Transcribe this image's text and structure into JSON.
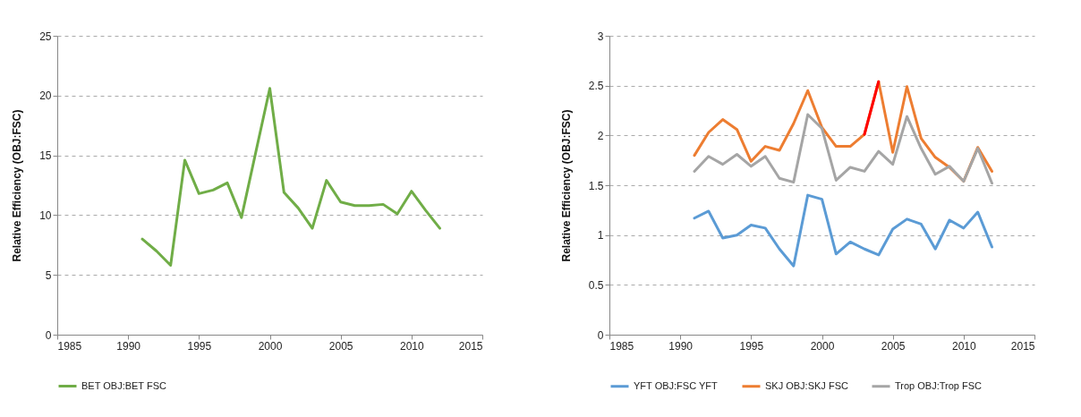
{
  "chart_data": [
    {
      "type": "line",
      "ylabel": "Relative Efficiency (OBJ:FSC)",
      "x": [
        1991,
        1992,
        1993,
        1994,
        1995,
        1996,
        1997,
        1998,
        1999,
        2000,
        2001,
        2002,
        2003,
        2004,
        2005,
        2006,
        2007,
        2008,
        2009,
        2010,
        2011,
        2012
      ],
      "series": [
        {
          "name": "BET OBJ:BET FSC",
          "color": "#70ad47",
          "values": [
            8.0,
            7.0,
            5.8,
            14.6,
            11.8,
            12.1,
            12.7,
            9.8,
            15.2,
            20.6,
            11.9,
            10.6,
            8.9,
            12.9,
            11.1,
            10.8,
            10.8,
            10.9,
            10.1,
            12.0,
            10.4,
            8.9
          ]
        }
      ],
      "xlim": [
        1985,
        2015
      ],
      "xticks": [
        1985,
        1990,
        1995,
        2000,
        2005,
        2010,
        2015
      ],
      "ylim": [
        0,
        25
      ],
      "yticks": [
        0,
        5,
        10,
        15,
        20,
        25
      ],
      "grid": "y",
      "legend": "bottom",
      "line_style": "solid"
    },
    {
      "type": "line",
      "ylabel": "Relative Efficiency (OBJ:FSC)",
      "x": [
        1991,
        1992,
        1993,
        1994,
        1995,
        1996,
        1997,
        1998,
        1999,
        2000,
        2001,
        2002,
        2003,
        2004,
        2005,
        2006,
        2007,
        2008,
        2009,
        2010,
        2011,
        2012
      ],
      "series": [
        {
          "name": "YFT OBJ:FSC YFT",
          "color": "#5b9bd5",
          "values": [
            1.17,
            1.24,
            0.97,
            1.0,
            1.1,
            1.07,
            0.86,
            0.69,
            1.4,
            1.36,
            0.81,
            0.93,
            0.86,
            0.8,
            1.06,
            1.16,
            1.11,
            0.86,
            1.15,
            1.07,
            1.23,
            0.88
          ]
        },
        {
          "name": "SKJ OBJ:SKJ FSC",
          "color": "#ed7d31",
          "values": [
            1.8,
            2.03,
            2.16,
            2.06,
            1.74,
            1.89,
            1.85,
            2.12,
            2.45,
            2.08,
            1.89,
            1.89,
            2.01,
            2.54,
            1.83,
            2.49,
            1.97,
            1.78,
            1.68,
            1.54,
            1.88,
            1.64
          ]
        },
        {
          "name": "Trop OBJ:Trop FSC",
          "color": "#a5a5a5",
          "values": [
            1.64,
            1.79,
            1.71,
            1.81,
            1.69,
            1.79,
            1.57,
            1.53,
            2.21,
            2.07,
            1.55,
            1.68,
            1.64,
            1.84,
            1.71,
            2.19,
            1.87,
            1.61,
            1.69,
            1.54,
            1.87,
            1.52
          ]
        },
        {
          "color": "#ff0000",
          "x": [
            2003,
            2004
          ],
          "values": [
            2.01,
            2.54
          ]
        }
      ],
      "xlim": [
        1985,
        2015
      ],
      "xticks": [
        1985,
        1990,
        1995,
        2000,
        2005,
        2010,
        2015
      ],
      "ylim": [
        0,
        3
      ],
      "yticks": [
        0,
        0.5,
        1,
        1.5,
        2,
        2.5,
        3
      ],
      "grid": "y",
      "legend": "bottom",
      "line_style": "solid"
    }
  ]
}
